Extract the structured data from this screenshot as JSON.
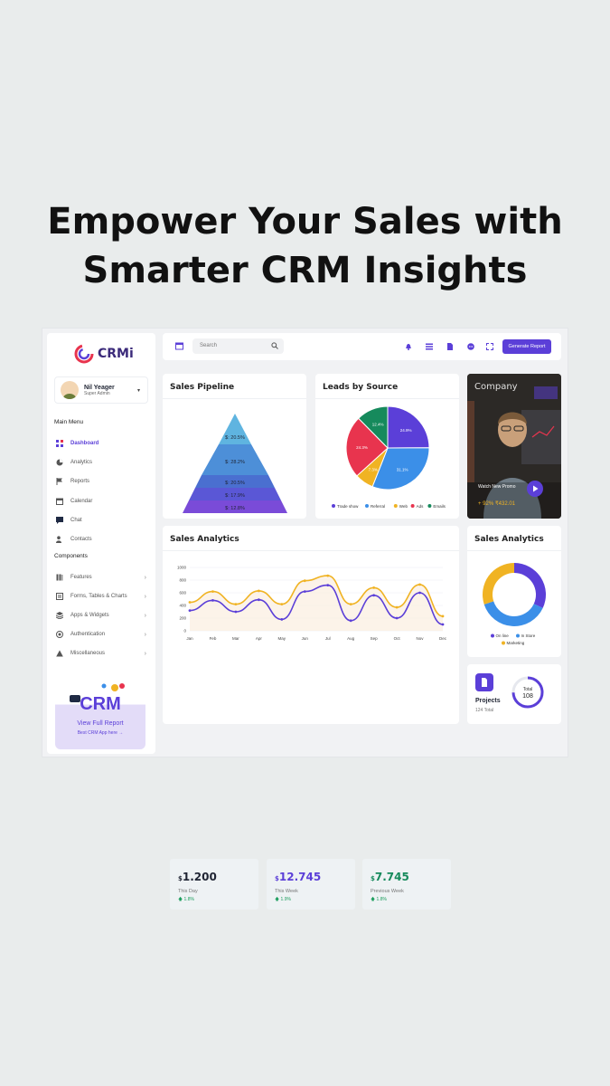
{
  "headline": {
    "line1": "Empower Your Sales with",
    "line2": "Smarter CRM Insights"
  },
  "app": {
    "logo_text": "CRMi"
  },
  "user": {
    "name": "Nil Yeager",
    "role": "Super Admin"
  },
  "sidebar": {
    "main_menu_label": "Main Menu",
    "main_items": [
      {
        "label": "Dashboard",
        "icon": "grid-icon"
      },
      {
        "label": "Analytics",
        "icon": "pie-icon"
      },
      {
        "label": "Reports",
        "icon": "flag-icon"
      },
      {
        "label": "Calendar",
        "icon": "calendar-icon"
      },
      {
        "label": "Chat",
        "icon": "chat-icon"
      },
      {
        "label": "Contacts",
        "icon": "users-icon"
      }
    ],
    "components_label": "Components",
    "component_items": [
      {
        "label": "Features",
        "icon": "book-icon"
      },
      {
        "label": "Forms, Tables & Charts",
        "icon": "form-icon"
      },
      {
        "label": "Apps & Widgets",
        "icon": "apps-icon"
      },
      {
        "label": "Authentication",
        "icon": "lock-icon"
      },
      {
        "label": "Miscellaneous",
        "icon": "warning-icon"
      }
    ],
    "promo": {
      "title": "View Full Report",
      "subtitle": "Best CRM App here →",
      "art_text": "CRM"
    }
  },
  "topbar": {
    "search_placeholder": "Search",
    "generate_label": "Generate Report"
  },
  "pipeline": {
    "title": "Sales Pipeline",
    "labels": [
      "$: 20.5%",
      "$: 28.2%",
      "$: 20.5%",
      "$: 17.9%",
      "$: 12.8%"
    ]
  },
  "leads": {
    "title": "Leads by Source"
  },
  "video": {
    "title": "Company",
    "caption": "Watch New Promo",
    "stat": "+ 92% ₹432.01"
  },
  "sales": {
    "title": "Sales Analytics"
  },
  "stats": [
    {
      "currency": "$",
      "value": "1.200",
      "label": "This Day",
      "change": "1.8%"
    },
    {
      "currency": "$",
      "value": "12.745",
      "label": "This Week",
      "change": "1.9%"
    },
    {
      "currency": "$",
      "value": "7.745",
      "label": "Previous Week",
      "change": "1.8%"
    }
  ],
  "donut": {
    "title": "Sales Analytics"
  },
  "projects": {
    "title": "Projects",
    "sub": "124 Total",
    "ring_label": "Total",
    "ring_value": "108"
  },
  "colors": {
    "accent": "#5b3fd8",
    "gold": "#f0b323",
    "blue": "#3b8fe8",
    "red": "#e8344e",
    "green": "#168a5c"
  },
  "chart_data": [
    {
      "type": "pie",
      "title": "Leads by Source",
      "categories": [
        "Trade show",
        "Referral",
        "Web",
        "Ads",
        "Emails"
      ],
      "values": [
        24.9,
        31.1,
        7.3,
        24.3,
        12.4
      ],
      "labels": [
        "24.9%",
        "31.1%",
        "7.3%",
        "24.3%",
        "12.4%"
      ],
      "colors": [
        "#5b3fd8",
        "#3b8fe8",
        "#f0b323",
        "#e8344e",
        "#168a5c"
      ],
      "legend": "bottom"
    },
    {
      "type": "line",
      "title": "Sales Analytics",
      "categories": [
        "Jan",
        "Feb",
        "Mar",
        "Apr",
        "May",
        "Jun",
        "Jul",
        "Aug",
        "Sep",
        "Oct",
        "Nov",
        "Dec"
      ],
      "ylim": [
        0,
        1000
      ],
      "yticks": [
        0,
        200,
        400,
        600,
        800,
        1000
      ],
      "grid": true,
      "series": [
        {
          "color": "#f0b323",
          "values": [
            450,
            620,
            420,
            630,
            420,
            790,
            870,
            420,
            680,
            370,
            730,
            230
          ]
        },
        {
          "color": "#5b3fd8",
          "values": [
            320,
            480,
            300,
            490,
            180,
            620,
            720,
            160,
            560,
            200,
            600,
            100
          ]
        }
      ]
    },
    {
      "type": "pie",
      "title": "Sales Analytics",
      "categories": [
        "On line",
        "In Store",
        "Marketing"
      ],
      "values": [
        32,
        38,
        30
      ],
      "colors": [
        "#5b3fd8",
        "#3b8fe8",
        "#f0b323"
      ],
      "legend": "bottom"
    }
  ]
}
